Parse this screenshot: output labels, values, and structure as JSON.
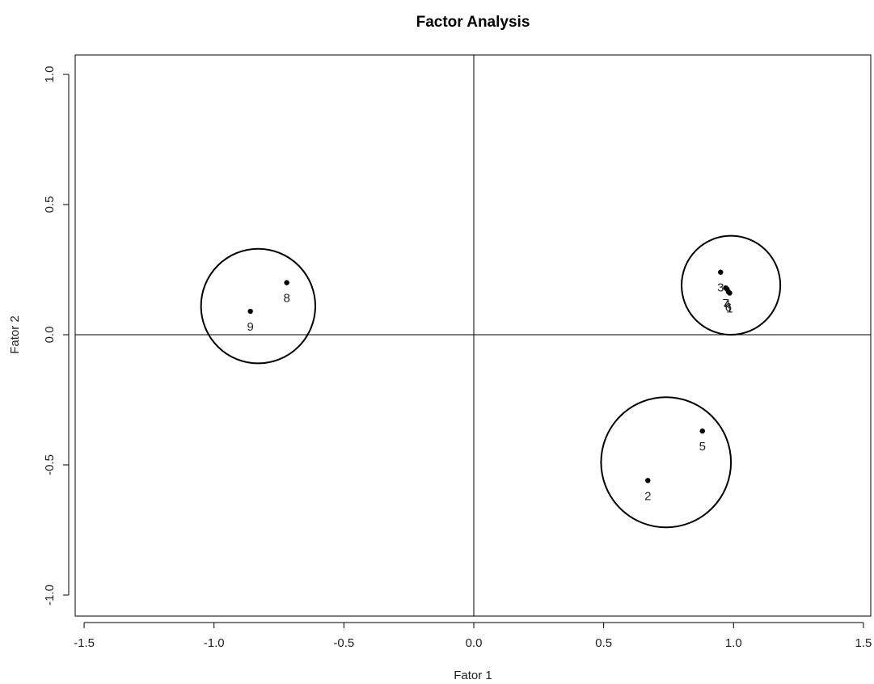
{
  "chart_data": {
    "type": "scatter",
    "title": "Factor Analysis",
    "xlabel": "Fator 1",
    "ylabel": "Fator 2",
    "xlim": [
      -1.5,
      1.5
    ],
    "ylim": [
      -1.0,
      1.0
    ],
    "xticks": [
      "-1.5",
      "-1.0",
      "-0.5",
      "0.0",
      "0.5",
      "1.0",
      "1.5"
    ],
    "yticks": [
      "-1.0",
      "-0.5",
      "0.0",
      "0.5",
      "1.0"
    ],
    "grid": false,
    "reference_lines": {
      "x": 0,
      "y": 0
    },
    "points": [
      {
        "label": "2",
        "x": 0.67,
        "y": -0.56
      },
      {
        "label": "5",
        "x": 0.88,
        "y": -0.37
      },
      {
        "label": "8",
        "x": -0.72,
        "y": 0.2
      },
      {
        "label": "9",
        "x": -0.86,
        "y": 0.09
      },
      {
        "label": "3",
        "x": 0.95,
        "y": 0.24
      },
      {
        "label": "7",
        "x": 0.97,
        "y": 0.18
      },
      {
        "label": "4",
        "x": 0.975,
        "y": 0.175
      },
      {
        "label": "6",
        "x": 0.98,
        "y": 0.165
      },
      {
        "label": "1",
        "x": 0.985,
        "y": 0.16
      }
    ],
    "clusters": [
      {
        "cx": -0.83,
        "cy": 0.11,
        "r": 0.22
      },
      {
        "cx": 0.99,
        "cy": 0.19,
        "r": 0.19
      },
      {
        "cx": 0.74,
        "cy": -0.49,
        "r": 0.25
      }
    ]
  }
}
